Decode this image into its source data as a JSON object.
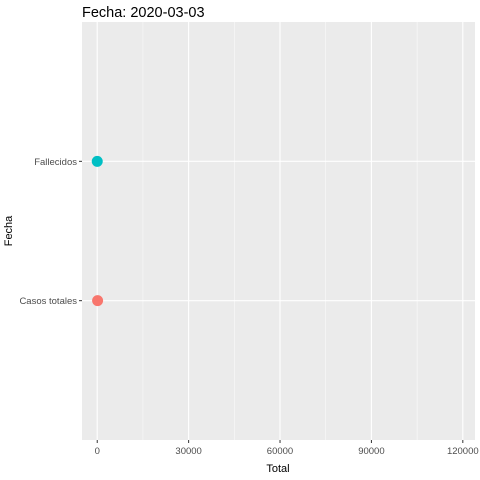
{
  "chart_data": {
    "type": "scatter",
    "title": "Fecha: 2020-03-03",
    "xlabel": "Total",
    "ylabel": "Fecha",
    "xlim": [
      -5000,
      124000
    ],
    "x_ticks": [
      0,
      30000,
      60000,
      90000,
      120000
    ],
    "x_tick_labels": [
      "0",
      "30000",
      "60000",
      "90000",
      "120000"
    ],
    "categories": [
      "Casos totales",
      "Fallecidos"
    ],
    "points": [
      {
        "category": "Casos totales",
        "x": 120,
        "color": "#F8766D"
      },
      {
        "category": "Fallecidos",
        "x": 2,
        "color": "#00BFC4"
      }
    ],
    "panel_background": "#EBEBEB",
    "grid": true,
    "legend": "none"
  }
}
